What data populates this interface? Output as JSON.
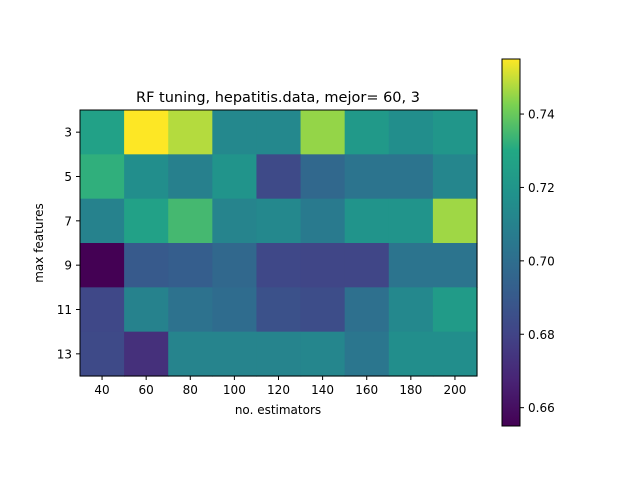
{
  "chart_data": {
    "type": "heatmap",
    "title": "RF tuning, hepatitis.data, mejor= 60, 3",
    "xlabel": "no. estimators",
    "ylabel": "max features",
    "x_categories": [
      "40",
      "60",
      "80",
      "100",
      "120",
      "140",
      "160",
      "180",
      "200"
    ],
    "y_categories": [
      "3",
      "5",
      "7",
      "9",
      "11",
      "13"
    ],
    "values": [
      [
        0.726,
        0.755,
        0.748,
        0.713,
        0.713,
        0.745,
        0.722,
        0.716,
        0.72
      ],
      [
        0.732,
        0.716,
        0.709,
        0.719,
        0.683,
        0.697,
        0.703,
        0.703,
        0.712
      ],
      [
        0.71,
        0.726,
        0.735,
        0.711,
        0.713,
        0.706,
        0.719,
        0.719,
        0.746
      ],
      [
        0.655,
        0.69,
        0.692,
        0.697,
        0.682,
        0.681,
        0.681,
        0.703,
        0.703
      ],
      [
        0.682,
        0.71,
        0.702,
        0.699,
        0.686,
        0.684,
        0.701,
        0.713,
        0.723
      ],
      [
        0.683,
        0.672,
        0.711,
        0.711,
        0.711,
        0.712,
        0.704,
        0.716,
        0.716
      ]
    ],
    "colorbar": {
      "range": [
        0.655,
        0.755
      ],
      "ticks": [
        "0.66",
        "0.68",
        "0.70",
        "0.72",
        "0.74"
      ],
      "tick_values": [
        0.66,
        0.68,
        0.7,
        0.72,
        0.74
      ],
      "colormap": "viridis"
    }
  }
}
